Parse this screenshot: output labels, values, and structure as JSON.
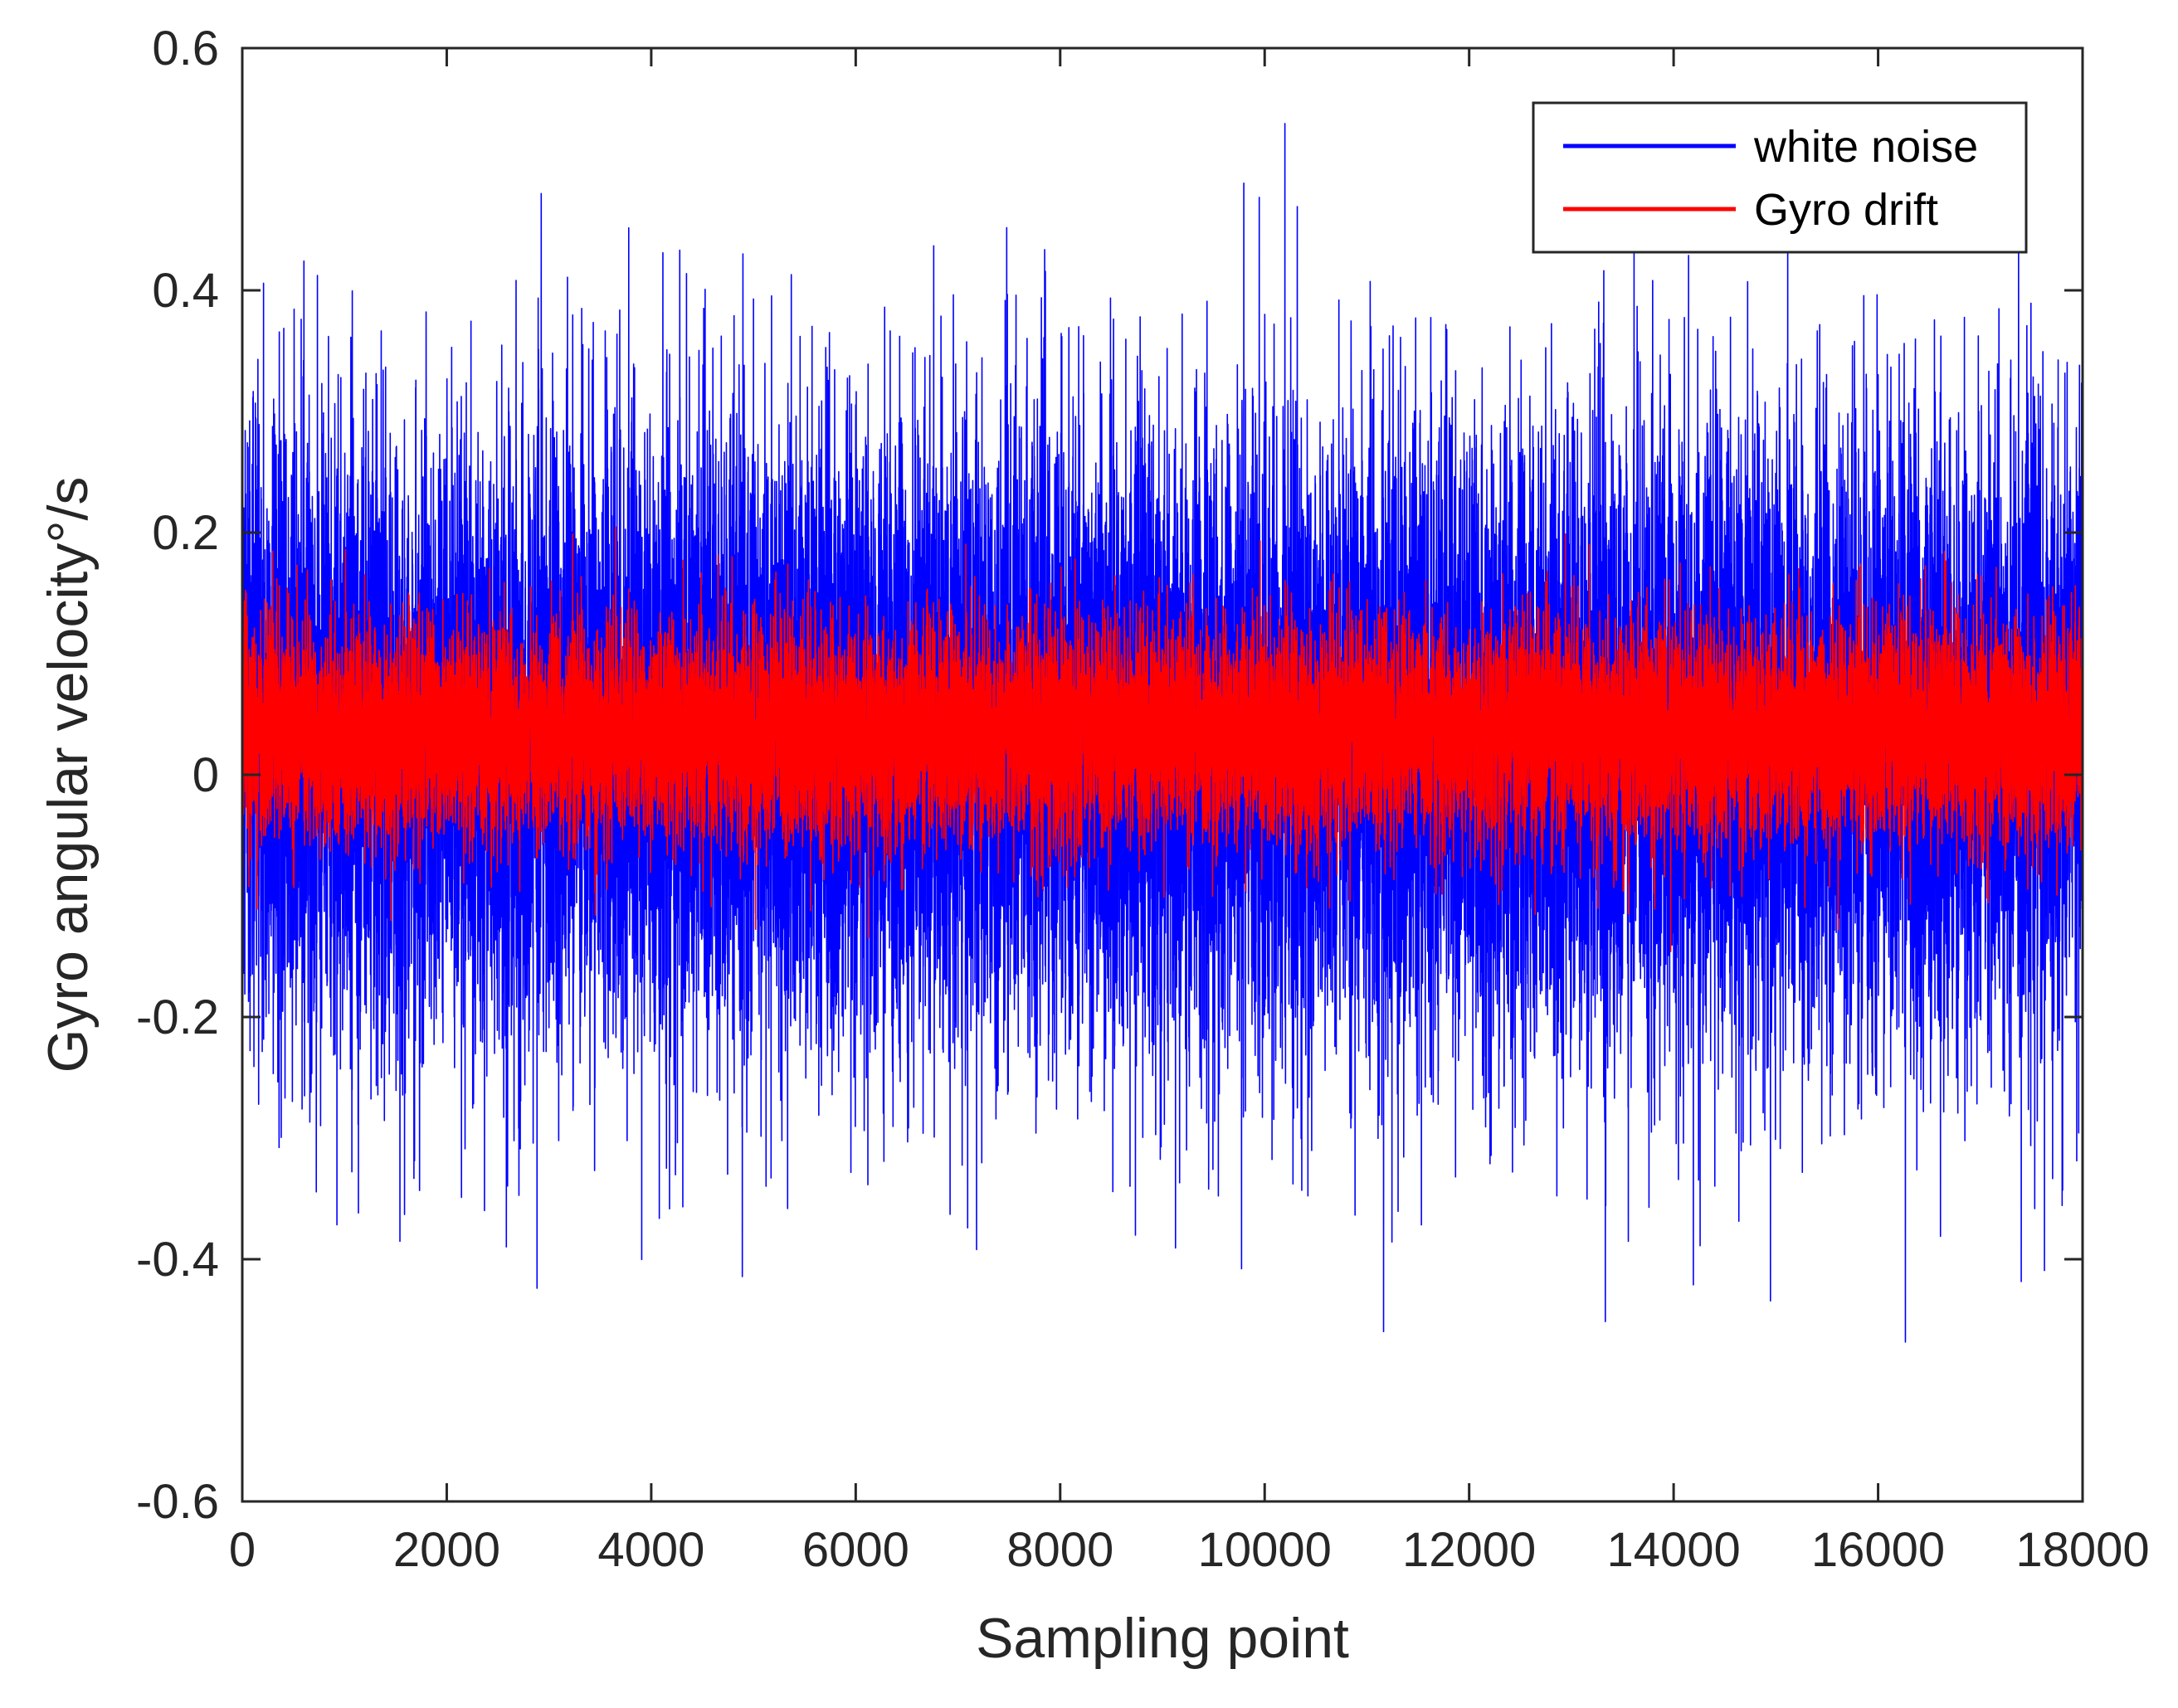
{
  "chart_data": {
    "type": "line",
    "title": "",
    "xlabel": "Sampling point",
    "ylabel": "Gyro angular velocity°/s",
    "xlim": [
      0,
      18000
    ],
    "ylim": [
      -0.6,
      0.6
    ],
    "xticks": [
      0,
      2000,
      4000,
      6000,
      8000,
      10000,
      12000,
      14000,
      16000,
      18000
    ],
    "xtick_labels": [
      "0",
      "2000",
      "4000",
      "6000",
      "8000",
      "10000",
      "12000",
      "14000",
      "16000",
      "18000"
    ],
    "yticks": [
      0.6,
      0.4,
      0.2,
      0,
      -0.2,
      -0.4,
      -0.6
    ],
    "ytick_labels": [
      "0.6",
      "0.4",
      "0.2",
      "0",
      "-0.2",
      "-0.4",
      "-0.6"
    ],
    "grid": false,
    "legend_position": "top-right",
    "n_points": 18000,
    "series": [
      {
        "name": "white noise",
        "color": "#0000ff",
        "mean": 0.03,
        "std": 0.13,
        "min": -0.5,
        "max": 0.55,
        "seed": 12345
      },
      {
        "name": "Gyro drift",
        "color": "#ff0000",
        "mean": 0.035,
        "std": 0.045,
        "min": -0.18,
        "max": 0.25,
        "seed": 67890
      }
    ]
  }
}
